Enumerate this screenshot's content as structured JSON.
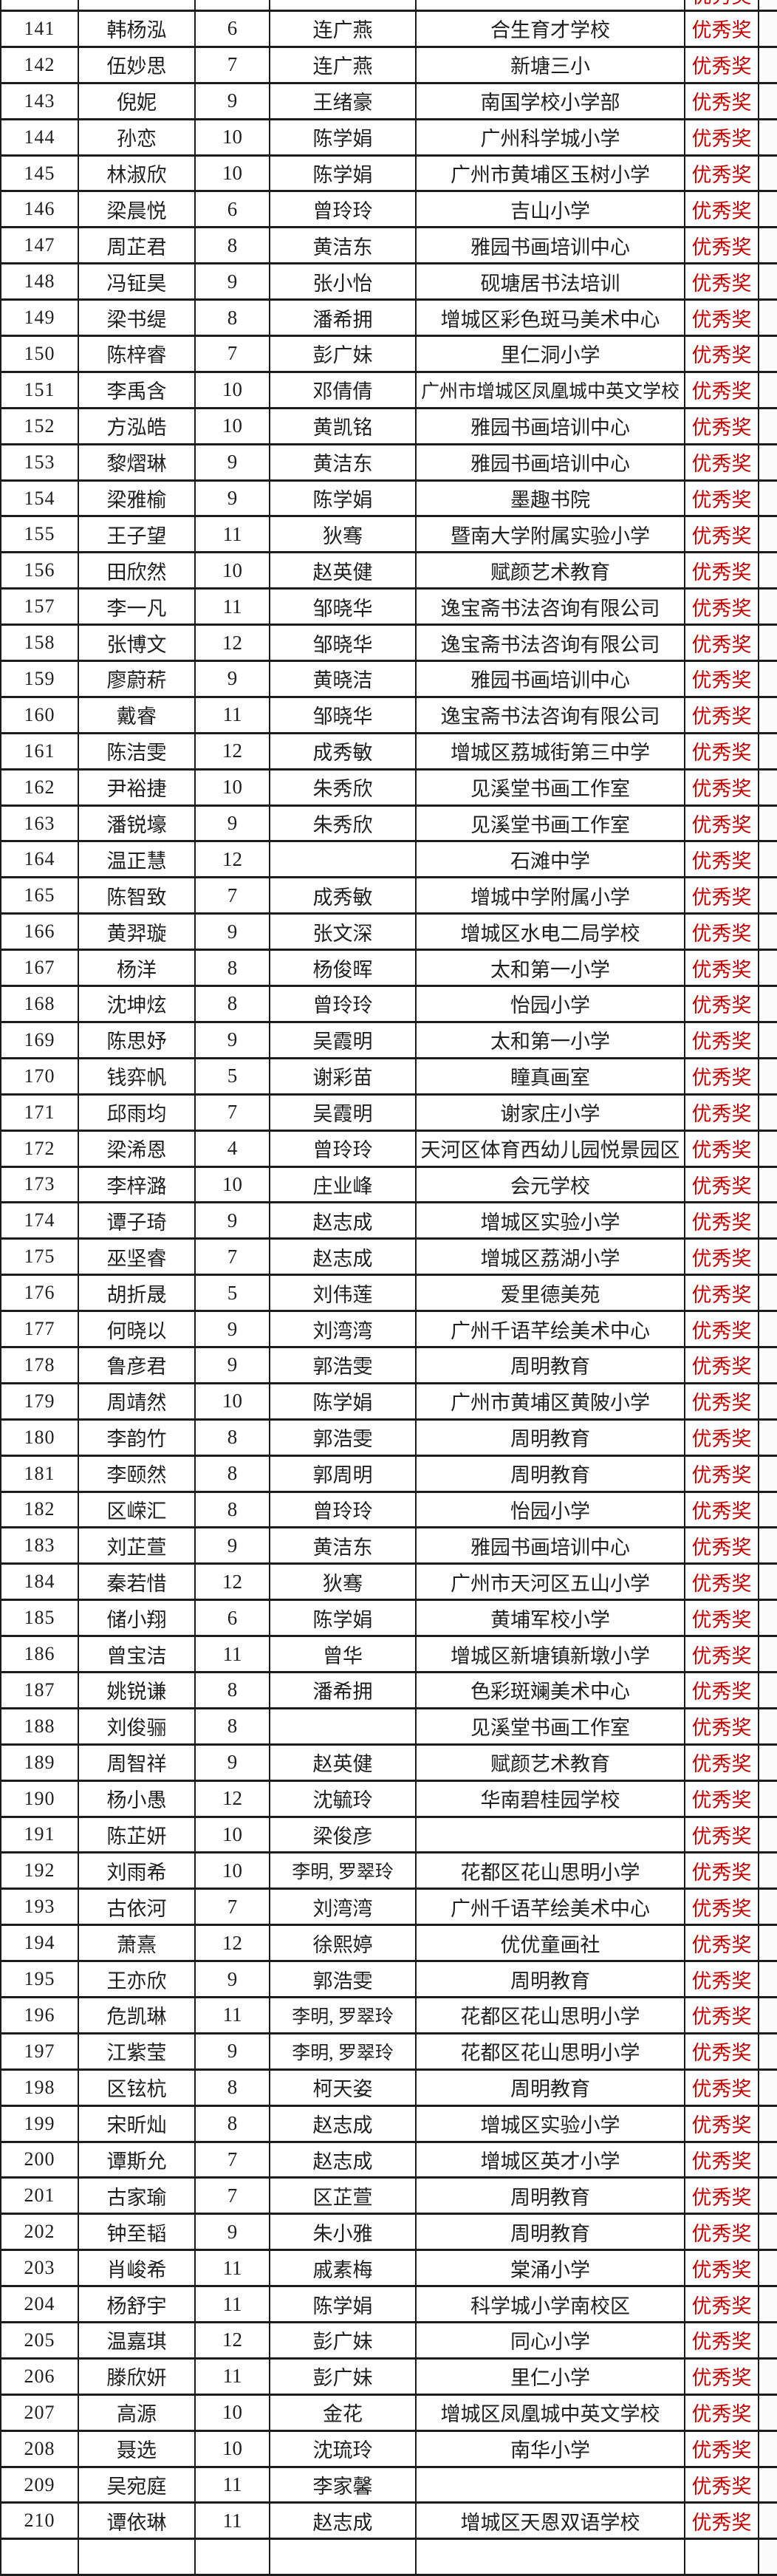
{
  "table": {
    "grid_color": "#1c1c1c",
    "text_color": "#1f1f1f",
    "award_text_color": "#c50000",
    "column_keys": [
      "number",
      "name",
      "age",
      "teacher",
      "school",
      "award"
    ],
    "top_partial_row": {
      "award": "优秀奖"
    },
    "rows": [
      [
        141,
        "韩杨泓",
        "6",
        "连广燕",
        "合生育才学校",
        "优秀奖"
      ],
      [
        142,
        "伍妙思",
        "7",
        "连广燕",
        "新塘三小",
        "优秀奖"
      ],
      [
        143,
        "倪妮",
        "9",
        "王绪豪",
        "南国学校小学部",
        "优秀奖"
      ],
      [
        144,
        "孙恋",
        "10",
        "陈学娟",
        "广州科学城小学",
        "优秀奖"
      ],
      [
        145,
        "林淑欣",
        "10",
        "陈学娟",
        "广州市黄埔区玉树小学",
        "优秀奖"
      ],
      [
        146,
        "梁晨悦",
        "6",
        "曾玲玲",
        "吉山小学",
        "优秀奖"
      ],
      [
        147,
        "周芷君",
        "8",
        "黄洁东",
        "雅园书画培训中心",
        "优秀奖"
      ],
      [
        148,
        "冯钲昊",
        "9",
        "张小怡",
        "砚塘居书法培训",
        "优秀奖"
      ],
      [
        149,
        "梁书缇",
        "8",
        "潘希拥",
        "增城区彩色斑马美术中心",
        "优秀奖"
      ],
      [
        150,
        "陈梓睿",
        "7",
        "彭广妹",
        "里仁洞小学",
        "优秀奖"
      ],
      [
        151,
        "李禹含",
        "10",
        "邓倩倩",
        "广州市增城区凤凰城中英文学校",
        "优秀奖"
      ],
      [
        152,
        "方泓皓",
        "10",
        "黄凯铭",
        "雅园书画培训中心",
        "优秀奖"
      ],
      [
        153,
        "黎熠琳",
        "9",
        "黄洁东",
        "雅园书画培训中心",
        "优秀奖"
      ],
      [
        154,
        "梁雅榆",
        "9",
        "陈学娟",
        "墨趣书院",
        "优秀奖"
      ],
      [
        155,
        "王子望",
        "11",
        "狄骞",
        "暨南大学附属实验小学",
        "优秀奖"
      ],
      [
        156,
        "田欣然",
        "10",
        "赵英健",
        "赋颜艺术教育",
        "优秀奖"
      ],
      [
        157,
        "李一凡",
        "11",
        "邹晓华",
        "逸宝斋书法咨询有限公司",
        "优秀奖"
      ],
      [
        158,
        "张博文",
        "12",
        "邹晓华",
        "逸宝斋书法咨询有限公司",
        "优秀奖"
      ],
      [
        159,
        "廖蔚菥",
        "9",
        "黄晓洁",
        "雅园书画培训中心",
        "优秀奖"
      ],
      [
        160,
        "戴睿",
        "11",
        "邹晓华",
        "逸宝斋书法咨询有限公司",
        "优秀奖"
      ],
      [
        161,
        "陈洁雯",
        "12",
        "成秀敏",
        "增城区荔城街第三中学",
        "优秀奖"
      ],
      [
        162,
        "尹裕捷",
        "10",
        "朱秀欣",
        "见溪堂书画工作室",
        "优秀奖"
      ],
      [
        163,
        "潘锐壕",
        "9",
        "朱秀欣",
        "见溪堂书画工作室",
        "优秀奖"
      ],
      [
        164,
        "温正慧",
        "12",
        "",
        "石滩中学",
        "优秀奖"
      ],
      [
        165,
        "陈智致",
        "7",
        "成秀敏",
        "增城中学附属小学",
        "优秀奖"
      ],
      [
        166,
        "黄羿璇",
        "9",
        "张文深",
        "增城区水电二局学校",
        "优秀奖"
      ],
      [
        167,
        "杨洋",
        "8",
        "杨俊晖",
        "太和第一小学",
        "优秀奖"
      ],
      [
        168,
        "沈坤炫",
        "8",
        "曾玲玲",
        "怡园小学",
        "优秀奖"
      ],
      [
        169,
        "陈思妤",
        "9",
        "吴霞明",
        "太和第一小学",
        "优秀奖"
      ],
      [
        170,
        "钱弈帆",
        "5",
        "谢彩苗",
        "瞳真画室",
        "优秀奖"
      ],
      [
        171,
        "邱雨均",
        "7",
        "吴霞明",
        "谢家庄小学",
        "优秀奖"
      ],
      [
        172,
        "梁浠恩",
        "4",
        "曾玲玲",
        "天河区体育西幼儿园悦景园区",
        "优秀奖"
      ],
      [
        173,
        "李梓潞",
        "10",
        "庄业峰",
        "会元学校",
        "优秀奖"
      ],
      [
        174,
        "谭子琦",
        "9",
        "赵志成",
        "增城区实验小学",
        "优秀奖"
      ],
      [
        175,
        "巫坚睿",
        "7",
        "赵志成",
        "增城区荔湖小学",
        "优秀奖"
      ],
      [
        176,
        "胡折晟",
        "5",
        "刘伟莲",
        "爱里德美苑",
        "优秀奖"
      ],
      [
        177,
        "何晓以",
        "9",
        "刘湾湾",
        "广州千语芊绘美术中心",
        "优秀奖"
      ],
      [
        178,
        "鲁彦君",
        "9",
        "郭浩雯",
        "周明教育",
        "优秀奖"
      ],
      [
        179,
        "周靖然",
        "10",
        "陈学娟",
        "广州市黄埔区黄陂小学",
        "优秀奖"
      ],
      [
        180,
        "李韵竹",
        "8",
        "郭浩雯",
        "周明教育",
        "优秀奖"
      ],
      [
        181,
        "李颐然",
        "8",
        "郭周明",
        "周明教育",
        "优秀奖"
      ],
      [
        182,
        "区嵘汇",
        "8",
        "曾玲玲",
        "怡园小学",
        "优秀奖"
      ],
      [
        183,
        "刘芷萱",
        "9",
        "黄洁东",
        "雅园书画培训中心",
        "优秀奖"
      ],
      [
        184,
        "秦若惜",
        "12",
        "狄骞",
        "广州市天河区五山小学",
        "优秀奖"
      ],
      [
        185,
        "储小翔",
        "6",
        "陈学娟",
        "黄埔军校小学",
        "优秀奖"
      ],
      [
        186,
        "曾宝洁",
        "11",
        "曾华",
        "增城区新塘镇新墩小学",
        "优秀奖"
      ],
      [
        187,
        "姚锐谦",
        "8",
        "潘希拥",
        "色彩斑斓美术中心",
        "优秀奖"
      ],
      [
        188,
        "刘俊骊",
        "8",
        "",
        "见溪堂书画工作室",
        "优秀奖"
      ],
      [
        189,
        "周智祥",
        "9",
        "赵英健",
        "赋颜艺术教育",
        "优秀奖"
      ],
      [
        190,
        "杨小愚",
        "12",
        "沈毓玲",
        "华南碧桂园学校",
        "优秀奖"
      ],
      [
        191,
        "陈芷妍",
        "10",
        "梁俊彦",
        "",
        "优秀奖"
      ],
      [
        192,
        "刘雨希",
        "10",
        "李明, 罗翠玲",
        "花都区花山思明小学",
        "优秀奖"
      ],
      [
        193,
        "古依河",
        "7",
        "刘湾湾",
        "广州千语芊绘美术中心",
        "优秀奖"
      ],
      [
        194,
        "萧熹",
        "12",
        "徐熙婷",
        "优优童画社",
        "优秀奖"
      ],
      [
        195,
        "王亦欣",
        "9",
        "郭浩雯",
        "周明教育",
        "优秀奖"
      ],
      [
        196,
        "危凯琳",
        "11",
        "李明, 罗翠玲",
        "花都区花山思明小学",
        "优秀奖"
      ],
      [
        197,
        "江紫莹",
        "9",
        "李明, 罗翠玲",
        "花都区花山思明小学",
        "优秀奖"
      ],
      [
        198,
        "区铉杭",
        "8",
        "柯天姿",
        "周明教育",
        "优秀奖"
      ],
      [
        199,
        "宋昕灿",
        "8",
        "赵志成",
        "增城区实验小学",
        "优秀奖"
      ],
      [
        200,
        "谭斯允",
        "7",
        "赵志成",
        "增城区英才小学",
        "优秀奖"
      ],
      [
        201,
        "古家瑜",
        "7",
        "区芷萱",
        "周明教育",
        "优秀奖"
      ],
      [
        202,
        "钟至韬",
        "9",
        "朱小雅",
        "周明教育",
        "优秀奖"
      ],
      [
        203,
        "肖峻希",
        "11",
        "戚素梅",
        "棠涌小学",
        "优秀奖"
      ],
      [
        204,
        "杨舒宇",
        "11",
        "陈学娟",
        "科学城小学南校区",
        "优秀奖"
      ],
      [
        205,
        "温嘉琪",
        "12",
        "彭广妹",
        "同心小学",
        "优秀奖"
      ],
      [
        206,
        "滕欣妍",
        "11",
        "彭广妹",
        "里仁小学",
        "优秀奖"
      ],
      [
        207,
        "高源",
        "10",
        "金花",
        "增城区凤凰城中英文学校",
        "优秀奖"
      ],
      [
        208,
        "聂选",
        "10",
        "沈琉玲",
        "南华小学",
        "优秀奖"
      ],
      [
        209,
        "吴宛庭",
        "11",
        "李家馨",
        "",
        "优秀奖"
      ],
      [
        210,
        "谭依琳",
        "11",
        "赵志成",
        "增城区天恩双语学校",
        "优秀奖"
      ]
    ]
  }
}
